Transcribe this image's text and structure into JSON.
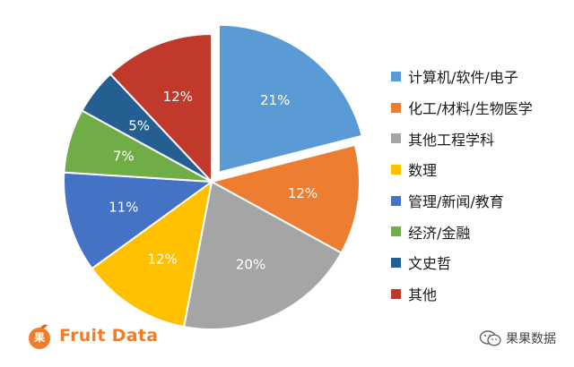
{
  "chart_data": {
    "type": "pie",
    "categories": [
      "计算机/软件/电子",
      "化工/材料/生物医学",
      "其他工程学科",
      "数理",
      "管理/新闻/教育",
      "经济/金融",
      "文史哲",
      "其他"
    ],
    "values": [
      21,
      12,
      20,
      12,
      11,
      7,
      5,
      12
    ],
    "labels": [
      "21%",
      "12%",
      "20%",
      "12%",
      "11%",
      "7%",
      "5%",
      "12%"
    ],
    "colors": [
      "#5b9bd5",
      "#ed7d31",
      "#a5a5a5",
      "#ffc000",
      "#4472c4",
      "#70ad47",
      "#255e91",
      "#c0392b"
    ],
    "exploded": "计算机/软件/电子",
    "legend_position": "right"
  },
  "branding": {
    "logo_char": "果",
    "logo_text": "Fruit Data",
    "logo_color": "#f07d2a",
    "watermark": "果果数据",
    "watermark_icon": "wechat-icon"
  }
}
